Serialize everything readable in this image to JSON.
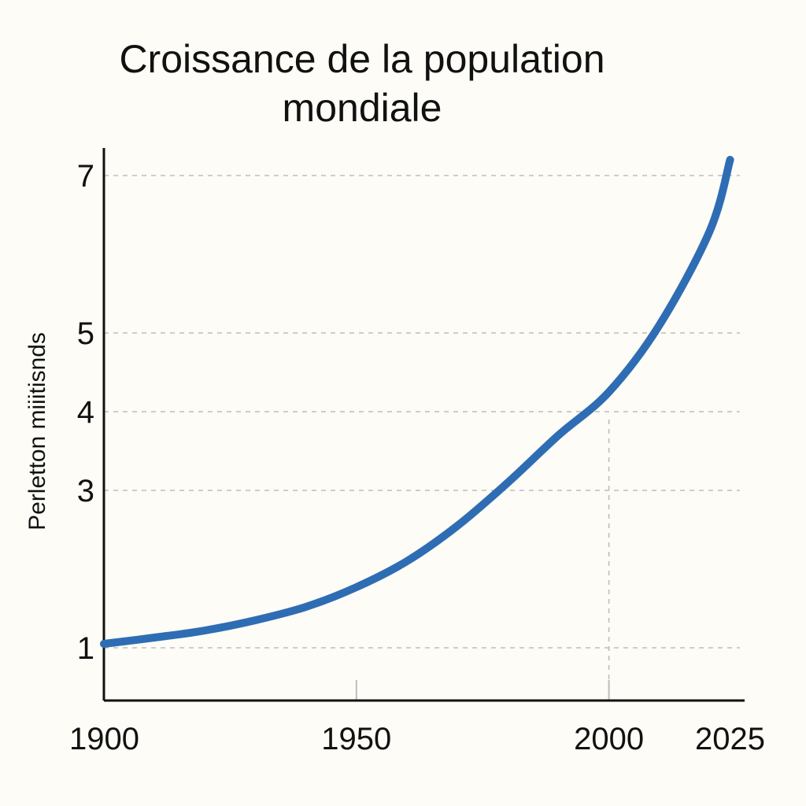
{
  "chart_data": {
    "type": "line",
    "title": [
      "Croissance de la population",
      "mondiale"
    ],
    "xlabel": "",
    "ylabel": "Perletton miiitisnds",
    "xlim": [
      1900,
      2025
    ],
    "ylim": [
      0.5,
      7.5
    ],
    "x_ticks": [
      1900,
      1950,
      2000,
      2025
    ],
    "y_ticks": [
      1,
      3,
      4,
      5,
      7
    ],
    "y_tick_positions": [
      1,
      3,
      4,
      5,
      7
    ],
    "grid": "dashed-horizontal",
    "reference_lines": [
      {
        "x": 2000,
        "y": 3.9
      }
    ],
    "colors": {
      "line": "#2e6db4",
      "grid": "#bdbdbd",
      "axis": "#111111"
    },
    "series": [
      {
        "x": [
          1900,
          1910,
          1920,
          1930,
          1940,
          1950,
          1960,
          1970,
          1980,
          1990,
          2000,
          2010,
          2020,
          2024
        ],
        "y": [
          1.05,
          1.13,
          1.22,
          1.35,
          1.52,
          1.77,
          2.1,
          2.55,
          3.1,
          3.7,
          4.25,
          5.1,
          6.3,
          7.2
        ]
      }
    ]
  }
}
